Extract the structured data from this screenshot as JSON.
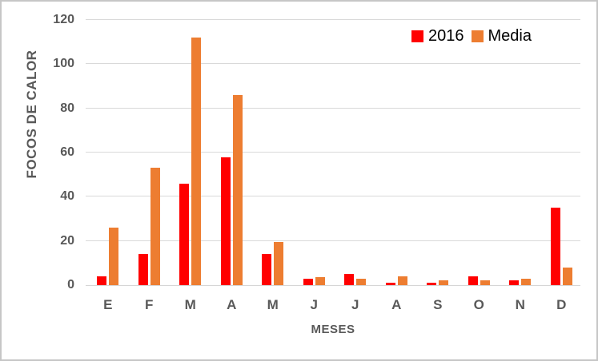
{
  "chart_data": {
    "type": "bar",
    "title": "",
    "xlabel": "MESES",
    "ylabel": "FOCOS DE CALOR",
    "categories": [
      "E",
      "F",
      "M",
      "A",
      "M",
      "J",
      "J",
      "A",
      "S",
      "O",
      "N",
      "D"
    ],
    "series": [
      {
        "name": "2016",
        "color": "#ff0000",
        "values": [
          4,
          14,
          46,
          58,
          14,
          3,
          5,
          1,
          1,
          4,
          2,
          35
        ]
      },
      {
        "name": "Media",
        "color": "#ed7d31",
        "values": [
          26,
          53,
          112,
          86,
          19.5,
          3.5,
          3,
          4,
          2,
          2,
          3,
          8
        ]
      }
    ],
    "ylim": [
      0,
      120
    ],
    "yticks": [
      0,
      20,
      40,
      60,
      80,
      100,
      120
    ],
    "grid": true,
    "legend_position": "top-right"
  },
  "colors": {
    "series_2016": "#ff0000",
    "series_media": "#ed7d31",
    "gridline": "#d9d9d9",
    "axis_text": "#595959",
    "legend_text": "#000000",
    "frame_border": "#c6c6c6"
  }
}
